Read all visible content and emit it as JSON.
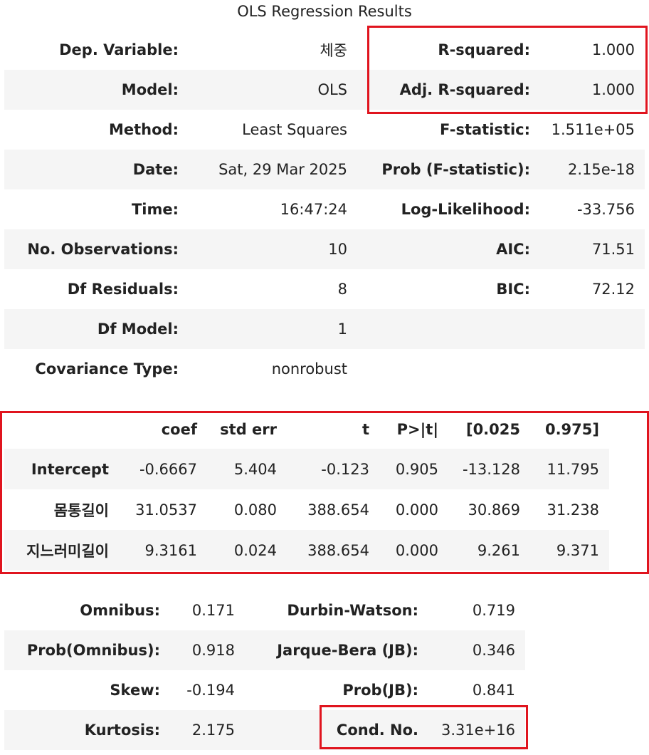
{
  "title": "OLS Regression Results",
  "model_table": {
    "rows": [
      [
        "Dep. Variable:",
        "체중",
        "R-squared:",
        "1.000"
      ],
      [
        "Model:",
        "OLS",
        "Adj. R-squared:",
        "1.000"
      ],
      [
        "Method:",
        "Least Squares",
        "F-statistic:",
        "1.511e+05"
      ],
      [
        "Date:",
        "Sat, 29 Mar 2025",
        "Prob (F-statistic):",
        "2.15e-18"
      ],
      [
        "Time:",
        "16:47:24",
        "Log-Likelihood:",
        "-33.756"
      ],
      [
        "No. Observations:",
        "10",
        "AIC:",
        "71.51"
      ],
      [
        "Df Residuals:",
        "8",
        "BIC:",
        "72.12"
      ],
      [
        "Df Model:",
        "1"
      ],
      [
        "Covariance Type:",
        "nonrobust"
      ]
    ]
  },
  "coef_table": {
    "header": [
      "coef",
      "std err",
      "t",
      "P>|t|",
      "[0.025",
      "0.975]"
    ],
    "rows": [
      [
        "Intercept",
        "-0.6667",
        "5.404",
        "-0.123",
        "0.905",
        "-13.128",
        "11.795"
      ],
      [
        "몸통길이",
        "31.0537",
        "0.080",
        "388.654",
        "0.000",
        "30.869",
        "31.238"
      ],
      [
        "지느러미길이",
        "9.3161",
        "0.024",
        "388.654",
        "0.000",
        "9.261",
        "9.371"
      ]
    ]
  },
  "diag_table": {
    "rows": [
      [
        "Omnibus:",
        "0.171",
        "Durbin-Watson:",
        "0.719"
      ],
      [
        "Prob(Omnibus):",
        "0.918",
        "Jarque-Bera (JB):",
        "0.346"
      ],
      [
        "Skew:",
        "-0.194",
        "Prob(JB):",
        "0.841"
      ],
      [
        "Kurtosis:",
        "2.175",
        "Cond. No.",
        "3.31e+16"
      ]
    ]
  }
}
